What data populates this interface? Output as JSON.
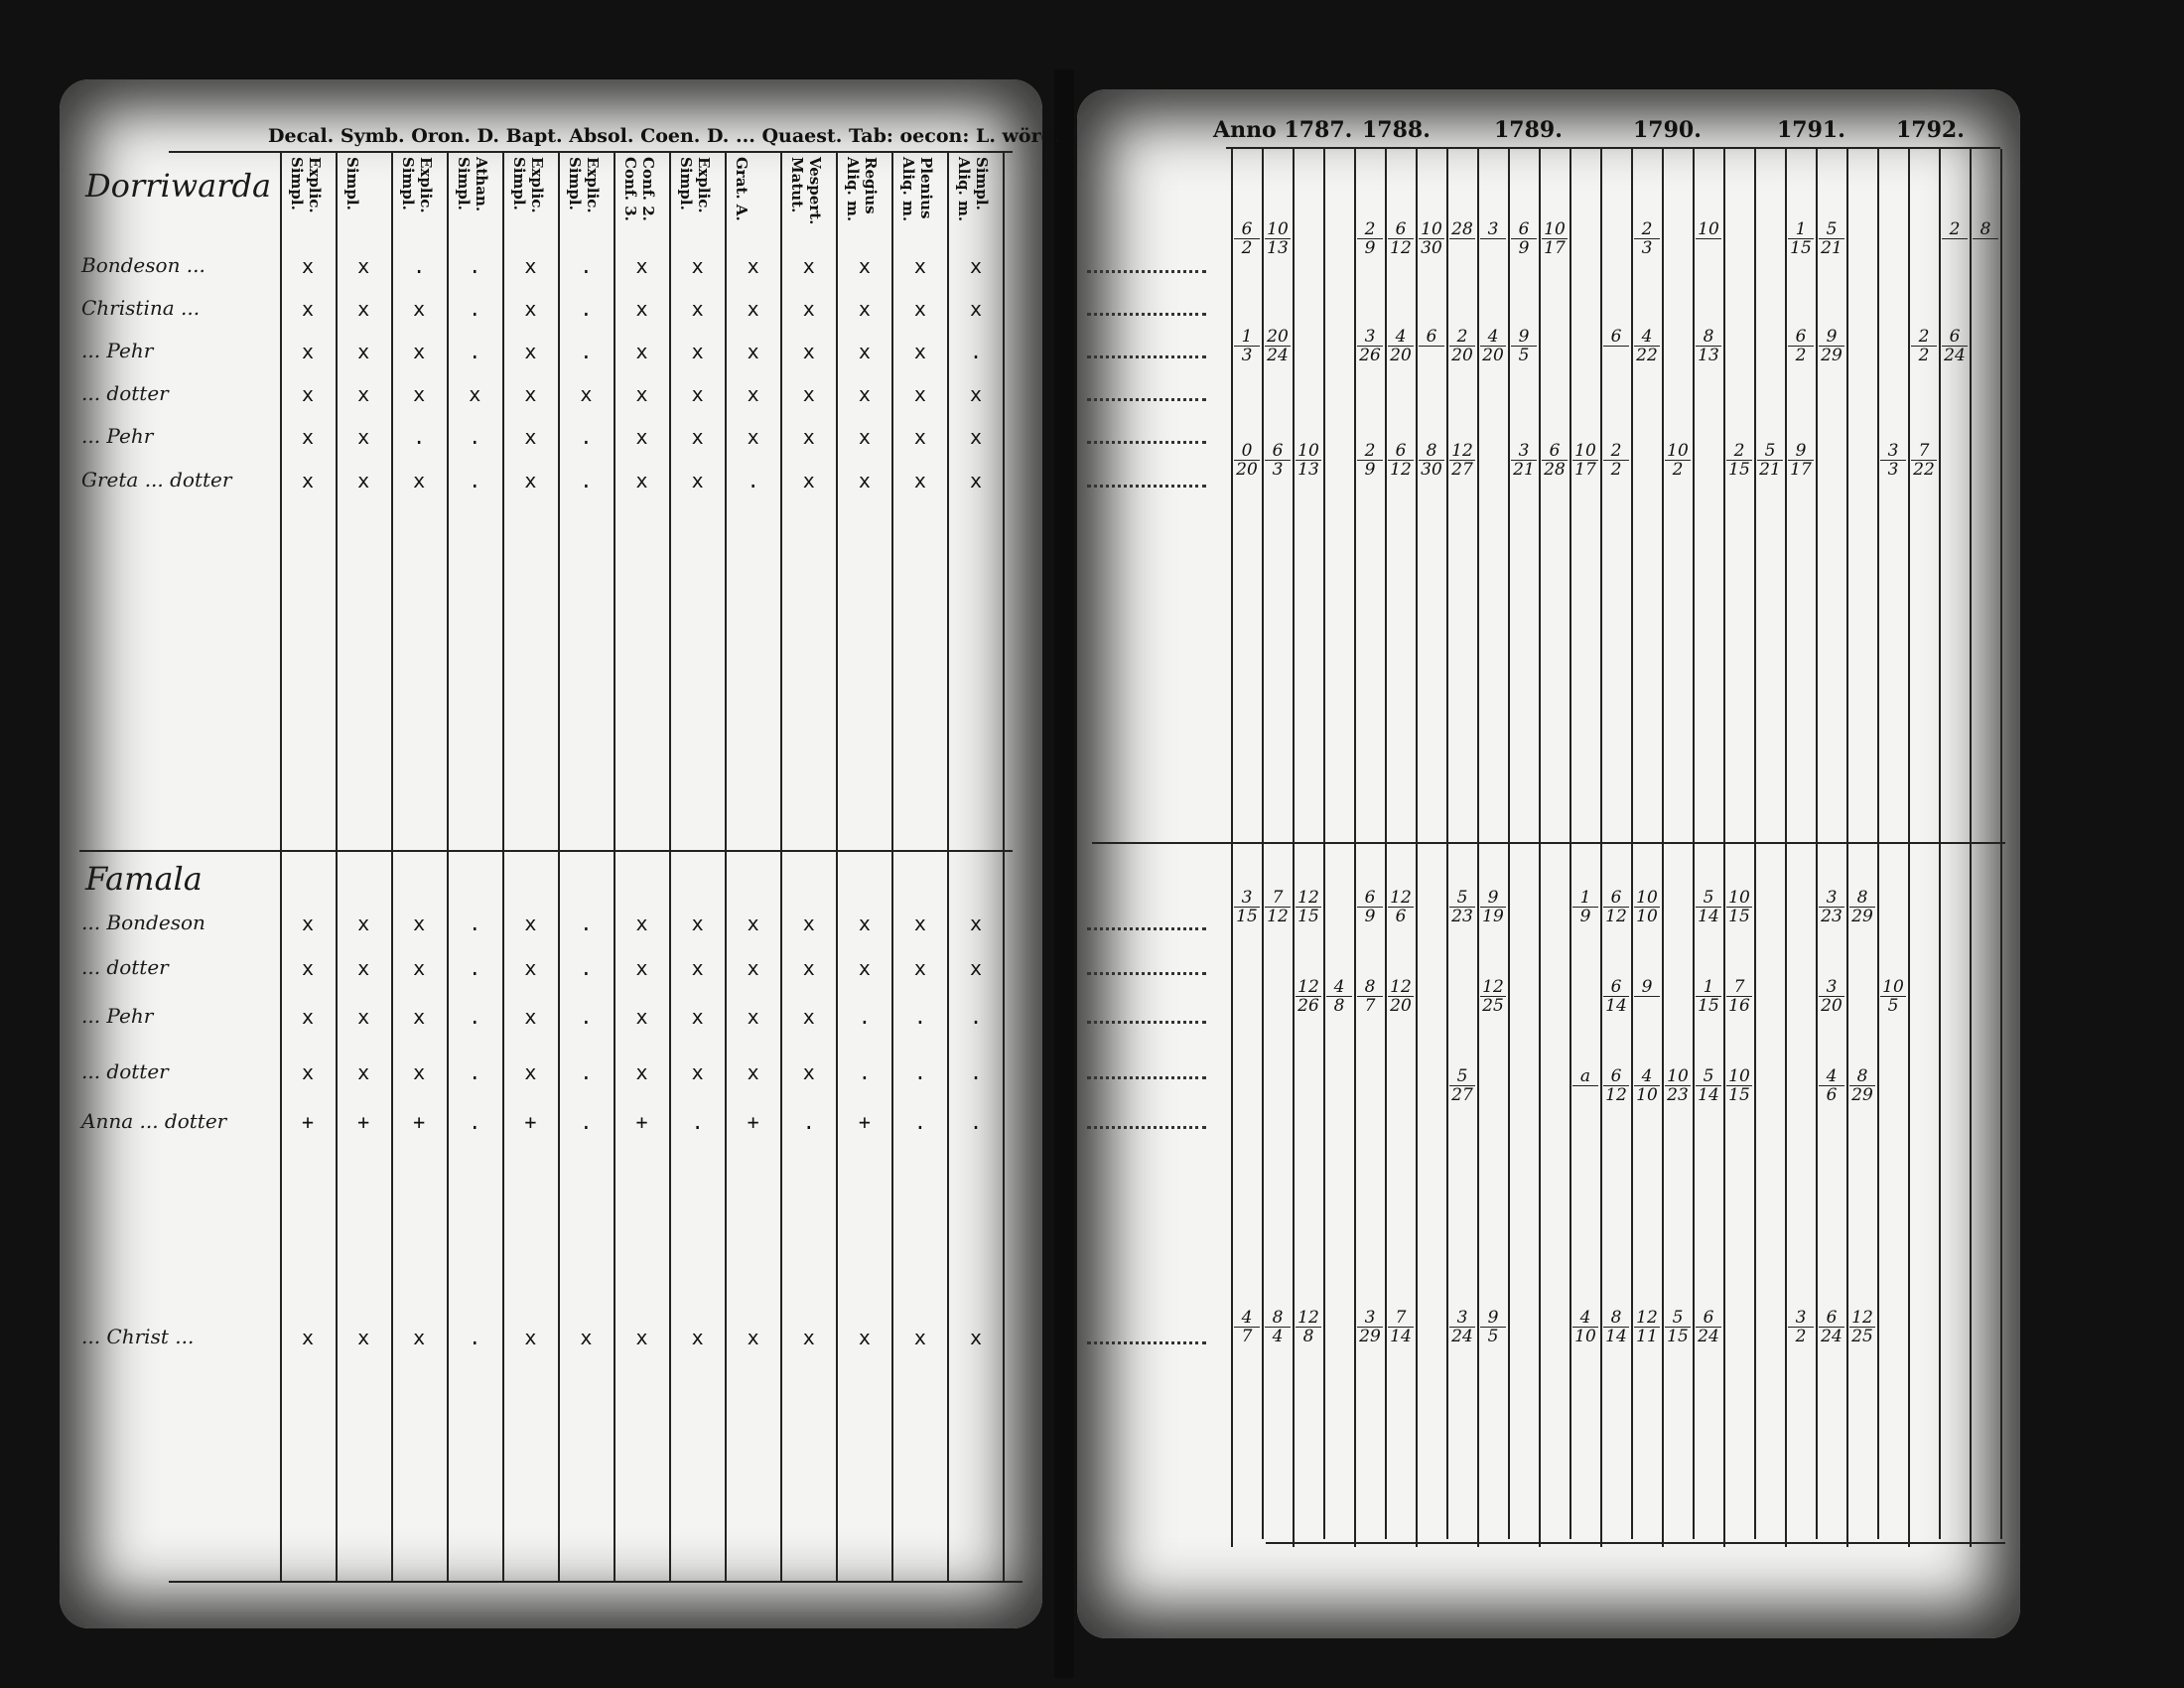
{
  "left_page": {
    "header": "Decal. Symb. Oron. D. Bapt. Absol. Coen. D. ... Quaest. Tab: oecon: L. wörd.",
    "columns": [
      "Explic.\nSimpl.",
      "Simpl.",
      "Explic.\nSimpl.",
      "Athan.\nSimpl.",
      "Explic.\nSimpl.",
      "Explic.\nSimpl.",
      "Conf. 2.\nConf. 3.",
      "Explic.\nSimpl.",
      "Grat. A.",
      "Vespert.\nMatut.",
      "Regius\nAliq. m.",
      "Plenius\nAliq. m.",
      "Simpl.\nAliq. m."
    ],
    "sections": [
      {
        "title": "Dorriwarda",
        "rows": [
          {
            "name": "Bondeson ...",
            "marks": "x x . . x . x x x x x x x"
          },
          {
            "name": "Christina ...",
            "marks": "x x x . x . x x x x x x x"
          },
          {
            "name": "... Pehr",
            "marks": "x x x . x . x x x x x x ."
          },
          {
            "name": "... dotter",
            "marks": "x x x x x x x x x x x x x"
          },
          {
            "name": "... Pehr",
            "marks": "x x . . x . x x x x x x x"
          },
          {
            "name": "Greta ... dotter",
            "marks": "x x x . x . x x . x x x x"
          }
        ]
      },
      {
        "title": "Famala",
        "rows": [
          {
            "name": "... Bondeson",
            "marks": "x x x . x . x x x x x x x"
          },
          {
            "name": "... dotter",
            "marks": "x x x . x . x x x x x x x"
          },
          {
            "name": "... Pehr",
            "marks": "x x x . x . x x x x . . ."
          },
          {
            "name": "... dotter",
            "marks": "x x x . x . x x x x . . ."
          },
          {
            "name": "Anna ... dotter",
            "marks": "+ + + . + . + . + . + . ."
          },
          {
            "name": "... Christ ...",
            "marks": "x x x . x x x x x x x x x"
          }
        ]
      }
    ]
  },
  "right_page": {
    "years": [
      "Anno 1787.",
      "1788.",
      "1789.",
      "1790.",
      "1791.",
      "1792."
    ],
    "rows": [
      [
        [
          "6",
          "2"
        ],
        [
          "10",
          "13"
        ],
        null,
        null,
        [
          "2",
          "9"
        ],
        [
          "6",
          "12"
        ],
        [
          "10",
          "30"
        ],
        [
          "28",
          ""
        ],
        [
          "3",
          ""
        ],
        [
          "6",
          "9"
        ],
        [
          "10",
          "17"
        ],
        null,
        null,
        [
          "2",
          "3"
        ],
        null,
        [
          "10",
          ""
        ],
        null,
        null,
        [
          "1",
          "15"
        ],
        [
          "5",
          "21"
        ],
        null,
        null,
        null,
        [
          "2",
          ""
        ],
        [
          "8",
          ""
        ]
      ],
      [
        [
          "1",
          "3"
        ],
        [
          "20",
          "24"
        ],
        null,
        null,
        [
          "3",
          "26"
        ],
        [
          "4",
          "20"
        ],
        [
          "6",
          ""
        ],
        [
          "2",
          "20"
        ],
        [
          "4",
          "20"
        ],
        [
          "9",
          "5"
        ],
        null,
        null,
        [
          "6",
          ""
        ],
        [
          "4",
          "22"
        ],
        null,
        [
          "8",
          "13"
        ],
        null,
        null,
        [
          "6",
          "2"
        ],
        [
          "9",
          "29"
        ],
        null,
        null,
        [
          "2",
          "2"
        ],
        [
          "6",
          "24"
        ],
        null
      ],
      [
        [
          "0",
          "20"
        ],
        [
          "6",
          "3"
        ],
        [
          "10",
          "13"
        ],
        null,
        [
          "2",
          "9"
        ],
        [
          "6",
          "12"
        ],
        [
          "8",
          "30"
        ],
        [
          "12",
          "27"
        ],
        null,
        [
          "3",
          "21"
        ],
        [
          "6",
          "28"
        ],
        [
          "10",
          "17"
        ],
        [
          "2",
          "2"
        ],
        null,
        [
          "10",
          "2"
        ],
        null,
        [
          "2",
          "15"
        ],
        [
          "5",
          "21"
        ],
        [
          "9",
          "17"
        ],
        null,
        null,
        [
          "3",
          "3"
        ],
        [
          "7",
          "22"
        ],
        null,
        null
      ],
      [
        [
          "3",
          "15"
        ],
        [
          "7",
          "12"
        ],
        [
          "12",
          "15"
        ],
        null,
        [
          "6",
          "9"
        ],
        [
          "12",
          "6"
        ],
        null,
        [
          "5",
          "23"
        ],
        [
          "9",
          "19"
        ],
        null,
        null,
        [
          "1",
          "9"
        ],
        [
          "6",
          "12"
        ],
        [
          "10",
          "10"
        ],
        null,
        [
          "5",
          "14"
        ],
        [
          "10",
          "15"
        ],
        null,
        null,
        [
          "3",
          "23"
        ],
        [
          "8",
          "29"
        ],
        null,
        null,
        null,
        null
      ],
      [
        null,
        null,
        [
          "12",
          "26"
        ],
        [
          "4",
          "8"
        ],
        [
          "8",
          "7"
        ],
        [
          "12",
          "20"
        ],
        null,
        null,
        [
          "12",
          "25"
        ],
        null,
        null,
        null,
        [
          "6",
          "14"
        ],
        [
          "9",
          ""
        ],
        null,
        [
          "1",
          "15"
        ],
        [
          "7",
          "16"
        ],
        null,
        null,
        [
          "3",
          "20"
        ],
        null,
        [
          "10",
          "5"
        ],
        null,
        null,
        null
      ],
      [
        null,
        null,
        null,
        null,
        null,
        null,
        null,
        [
          "5",
          "27"
        ],
        null,
        null,
        null,
        [
          "a",
          ""
        ],
        [
          "6",
          "12"
        ],
        [
          "4",
          "10"
        ],
        [
          "10",
          "23"
        ],
        [
          "5",
          "14"
        ],
        [
          "10",
          "15"
        ],
        null,
        null,
        [
          "4",
          "6"
        ],
        [
          "8",
          "29"
        ],
        null,
        null,
        null,
        null
      ],
      [
        [
          "4",
          "7"
        ],
        [
          "8",
          "4"
        ],
        [
          "12",
          "8"
        ],
        null,
        [
          "3",
          "29"
        ],
        [
          "7",
          "14"
        ],
        null,
        [
          "3",
          "24"
        ],
        [
          "9",
          "5"
        ],
        null,
        null,
        [
          "4",
          "10"
        ],
        [
          "8",
          "14"
        ],
        [
          "12",
          "11"
        ],
        [
          "5",
          "15"
        ],
        [
          "6",
          "24"
        ],
        null,
        null,
        [
          "3",
          "2"
        ],
        [
          "6",
          "24"
        ],
        [
          "12",
          "25"
        ],
        null,
        null,
        null,
        null
      ]
    ]
  }
}
